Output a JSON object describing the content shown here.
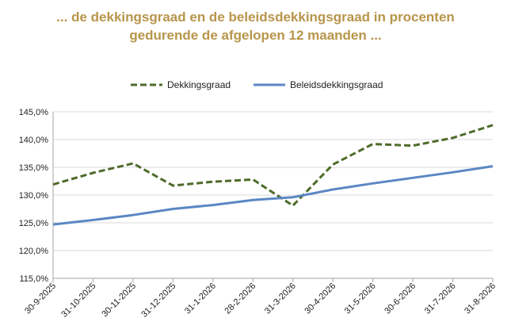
{
  "chart_data": {
    "type": "line",
    "title_line1": "... de dekkingsgraad en de beleidsdekkingsgraad in procenten",
    "title_line2": "gedurende de afgelopen 12 maanden ...",
    "xlabel": "",
    "ylabel": "",
    "categories": [
      "30-9-2025",
      "31-10-2025",
      "30-11-2025",
      "31-12-2025",
      "31-1-2026",
      "28-2-2026",
      "31-3-2026",
      "30-4-2026",
      "31-5-2026",
      "30-6-2026",
      "31-7-2026",
      "31-8-2026"
    ],
    "y_ticks": [
      "115,0%",
      "120,0%",
      "125,0%",
      "130,0%",
      "135,0%",
      "140,0%",
      "145,0%"
    ],
    "ylim": [
      115,
      145
    ],
    "legend_position": "top-center",
    "grid": true,
    "series": [
      {
        "name": "Dekkingsgraad",
        "color": "#4e6b2a",
        "style": "dashed",
        "values": [
          131.9,
          134.0,
          135.7,
          131.7,
          132.4,
          132.8,
          128.1,
          135.5,
          139.2,
          138.9,
          140.3,
          142.6
        ]
      },
      {
        "name": "Beleidsdekkingsgraad",
        "color": "#5b87c4",
        "style": "solid",
        "values": [
          124.7,
          125.5,
          126.4,
          127.5,
          128.2,
          129.1,
          129.6,
          131.0,
          132.1,
          133.1,
          134.1,
          135.2
        ]
      }
    ]
  }
}
